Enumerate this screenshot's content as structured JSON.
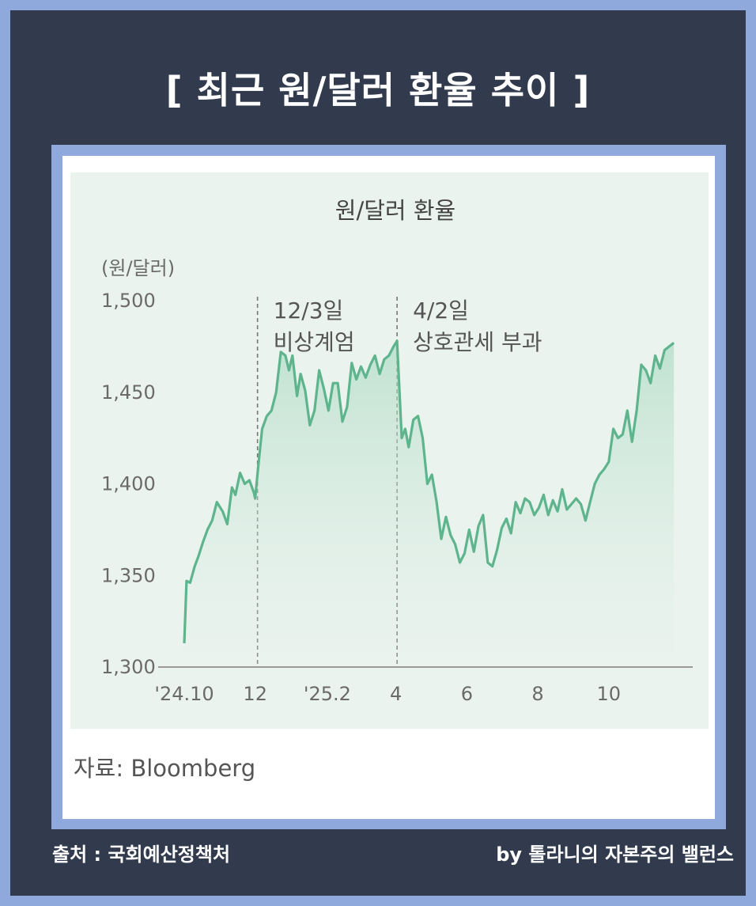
{
  "header": {
    "title": "[ 최근 원/달러 환율 추이 ]"
  },
  "footer": {
    "source": "출처 : 국회예산정책처",
    "credit": "by 톨라니의 자본주의 밸런스"
  },
  "source_note": "자료: Bloomberg",
  "colors": {
    "background": "#8FA9DD",
    "panel": "#323B4E",
    "plot_bg": "#EAF3EE",
    "line": "#5DB48D",
    "annotation_line": "#777777"
  },
  "chart_data": {
    "type": "area",
    "title": "원/달러 환율",
    "ylabel": "(원/달러)",
    "xlabel": "",
    "ylim": [
      1300,
      1500
    ],
    "yticks": [
      1500,
      1450,
      1400,
      1350,
      1300
    ],
    "yticklabels": [
      "1,500",
      "1,450",
      "1,400",
      "1,350",
      "1,300"
    ],
    "xticks": [
      {
        "label": "'24.10",
        "x": "2024-10-01"
      },
      {
        "label": "12",
        "x": "2024-12-01"
      },
      {
        "label": "'25.2",
        "x": "2025-02-01"
      },
      {
        "label": "4",
        "x": "2025-04-01"
      },
      {
        "label": "6",
        "x": "2025-06-01"
      },
      {
        "label": "8",
        "x": "2025-08-01"
      },
      {
        "label": "10",
        "x": "2025-10-01"
      }
    ],
    "xlim": [
      "2024-10-01",
      "2025-11-30"
    ],
    "annotations": [
      {
        "x": "2024-12-03",
        "lines": [
          "12/3일",
          "비상계엄"
        ]
      },
      {
        "x": "2025-04-02",
        "lines": [
          "4/2일",
          "상호관세 부과"
        ]
      }
    ],
    "series": [
      {
        "x": [
          "2024-10-01",
          "2024-10-03",
          "2024-10-06",
          "2024-10-10",
          "2024-10-13",
          "2024-10-17",
          "2024-10-21",
          "2024-10-25",
          "2024-10-29",
          "2024-11-03",
          "2024-11-07",
          "2024-11-11",
          "2024-11-14",
          "2024-11-18",
          "2024-11-22",
          "2024-11-26",
          "2024-11-30",
          "2024-12-01",
          "2024-12-04",
          "2024-12-07",
          "2024-12-11",
          "2024-12-15",
          "2024-12-19",
          "2024-12-23",
          "2024-12-27",
          "2024-12-30",
          "2025-01-02",
          "2025-01-06",
          "2025-01-09",
          "2025-01-13",
          "2025-01-17",
          "2025-01-21",
          "2025-01-25",
          "2025-01-29",
          "2025-02-02",
          "2025-02-06",
          "2025-02-10",
          "2025-02-14",
          "2025-02-18",
          "2025-02-22",
          "2025-02-26",
          "2025-03-02",
          "2025-03-06",
          "2025-03-10",
          "2025-03-14",
          "2025-03-18",
          "2025-03-22",
          "2025-03-26",
          "2025-03-30",
          "2025-04-02",
          "2025-04-06",
          "2025-04-09",
          "2025-04-12",
          "2025-04-16",
          "2025-04-20",
          "2025-04-24",
          "2025-04-28",
          "2025-05-02",
          "2025-05-06",
          "2025-05-10",
          "2025-05-14",
          "2025-05-18",
          "2025-05-22",
          "2025-05-26",
          "2025-05-30",
          "2025-06-03",
          "2025-06-07",
          "2025-06-11",
          "2025-06-15",
          "2025-06-19",
          "2025-06-23",
          "2025-06-27",
          "2025-07-01",
          "2025-07-05",
          "2025-07-09",
          "2025-07-13",
          "2025-07-17",
          "2025-07-21",
          "2025-07-25",
          "2025-07-29",
          "2025-08-02",
          "2025-08-06",
          "2025-08-10",
          "2025-08-14",
          "2025-08-18",
          "2025-08-22",
          "2025-08-26",
          "2025-08-30",
          "2025-09-03",
          "2025-09-07",
          "2025-09-11",
          "2025-09-15",
          "2025-09-19",
          "2025-09-23",
          "2025-09-27",
          "2025-10-01",
          "2025-10-05",
          "2025-10-09",
          "2025-10-13",
          "2025-10-17",
          "2025-10-21",
          "2025-10-25",
          "2025-10-29",
          "2025-11-02",
          "2025-11-06",
          "2025-11-10",
          "2025-11-14",
          "2025-11-18",
          "2025-11-22",
          "2025-11-26"
        ],
        "values": [
          1313,
          1347,
          1346,
          1355,
          1360,
          1368,
          1375,
          1380,
          1390,
          1385,
          1378,
          1398,
          1394,
          1406,
          1400,
          1402,
          1395,
          1392,
          1412,
          1430,
          1437,
          1440,
          1450,
          1472,
          1470,
          1462,
          1470,
          1448,
          1460,
          1451,
          1432,
          1440,
          1462,
          1452,
          1440,
          1455,
          1455,
          1434,
          1442,
          1466,
          1457,
          1464,
          1458,
          1465,
          1470,
          1460,
          1468,
          1470,
          1475,
          1478,
          1425,
          1430,
          1420,
          1435,
          1437,
          1425,
          1400,
          1405,
          1390,
          1370,
          1382,
          1372,
          1367,
          1357,
          1362,
          1375,
          1363,
          1377,
          1383,
          1357,
          1355,
          1364,
          1376,
          1381,
          1373,
          1390,
          1384,
          1392,
          1390,
          1383,
          1387,
          1394,
          1383,
          1391,
          1385,
          1397,
          1386,
          1389,
          1392,
          1389,
          1380,
          1390,
          1400,
          1405,
          1408,
          1412,
          1430,
          1425,
          1427,
          1440,
          1423,
          1440,
          1465,
          1462,
          1455,
          1470,
          1463,
          1473,
          1475,
          1477
        ]
      }
    ]
  }
}
